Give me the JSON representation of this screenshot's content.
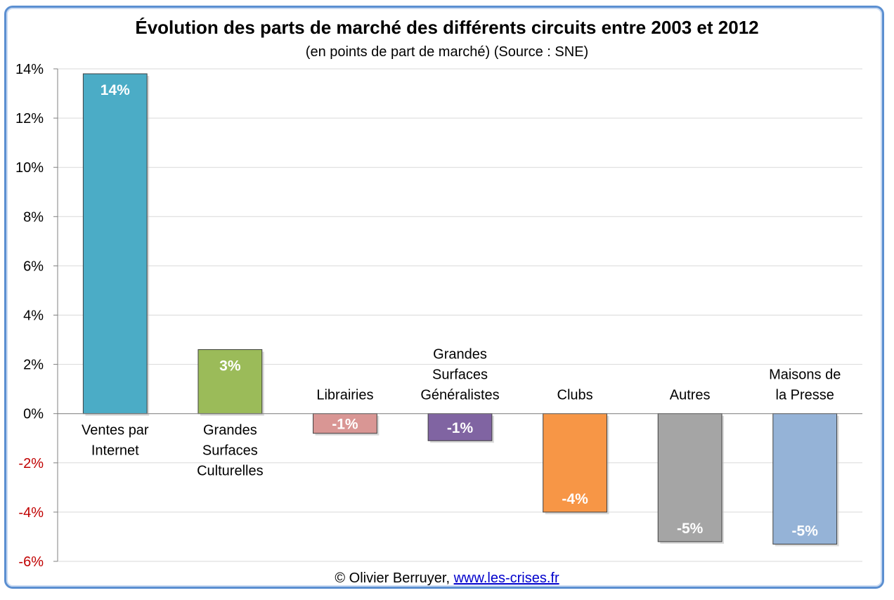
{
  "chart_data": {
    "type": "bar",
    "title": "Évolution des parts de marché des différents circuits entre 2003 et 2012",
    "subtitle": "(en points de part de marché) (Source : SNE)",
    "categories": [
      [
        "Ventes par",
        "Internet"
      ],
      [
        "Grandes",
        "Surfaces",
        "Culturelles"
      ],
      [
        "Librairies"
      ],
      [
        "Grandes",
        "Surfaces",
        "Généralistes"
      ],
      [
        "Clubs"
      ],
      [
        "Autres"
      ],
      [
        "Maisons de",
        "la Presse"
      ]
    ],
    "values": [
      13.8,
      2.6,
      -0.8,
      -1.1,
      -4.0,
      -5.2,
      -5.3
    ],
    "data_labels": [
      "14%",
      "3%",
      "-1%",
      "-1%",
      "-4%",
      "-5%",
      "-5%"
    ],
    "colors": [
      "#4bacc6",
      "#9bbb59",
      "#d99694",
      "#8064a2",
      "#f79646",
      "#a5a5a5",
      "#95b3d7"
    ],
    "ylim": [
      -6,
      14
    ],
    "yticks": [
      14,
      12,
      10,
      8,
      6,
      4,
      2,
      0,
      -2,
      -4,
      -6
    ],
    "ytick_labels": [
      "14%",
      "12%",
      "10%",
      "8%",
      "6%",
      "4%",
      "2%",
      "0%",
      "-2%",
      "-4%",
      "-6%"
    ],
    "ytick_positive_color": "#000000",
    "ytick_negative_color": "#c00000",
    "grid": true,
    "xlabel": "",
    "ylabel": ""
  },
  "footer": {
    "credit": "© Olivier Berruyer, ",
    "link": "www.les-crises.fr"
  }
}
